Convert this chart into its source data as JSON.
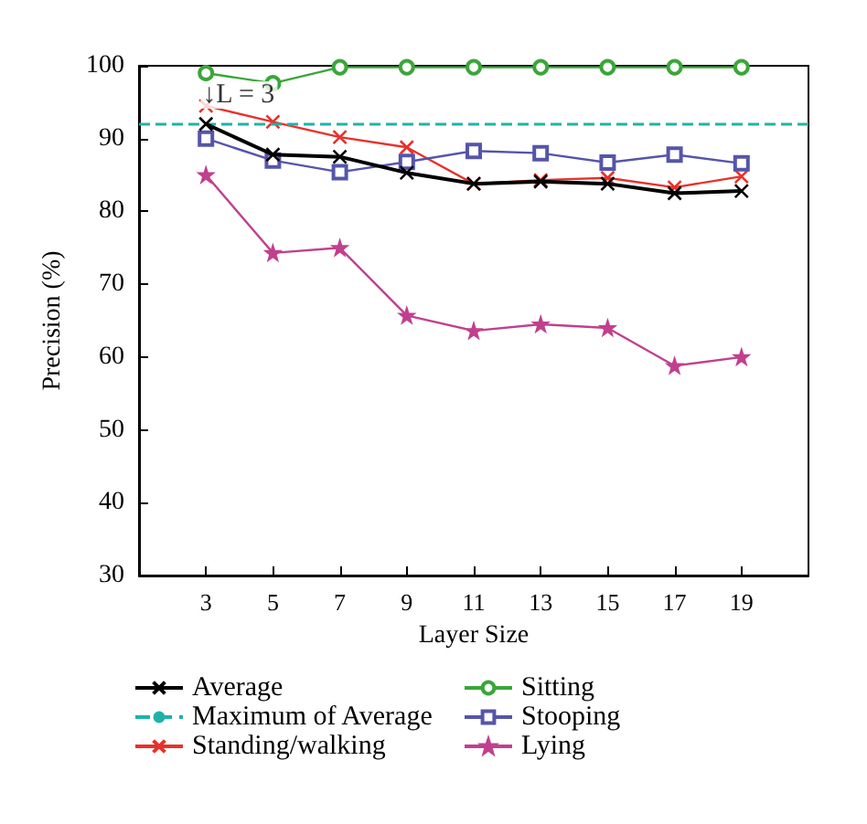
{
  "chart_data": {
    "type": "line",
    "xlabel": "Layer Size",
    "ylabel": "Precision (%)",
    "x": [
      3,
      5,
      7,
      9,
      11,
      13,
      15,
      17,
      19
    ],
    "xlim": [
      1,
      21
    ],
    "xticks": [
      3,
      5,
      7,
      9,
      11,
      13,
      15,
      17,
      19
    ],
    "ylim": [
      30,
      100
    ],
    "yticks": [
      30,
      40,
      50,
      60,
      70,
      80,
      90,
      100
    ],
    "grid": false,
    "legend": "bottom",
    "series": [
      {
        "name": "Average",
        "color": "#000000",
        "marker": "cross",
        "values": [
          92,
          87.8,
          87.5,
          85.3,
          83.8,
          84.1,
          83.8,
          82.5,
          82.8
        ]
      },
      {
        "name": "Standing/walking",
        "color": "#e8312a",
        "marker": "cross",
        "values": [
          94.5,
          92.3,
          90.2,
          88.8,
          83.8,
          84.3,
          84.6,
          83.3,
          84.8
        ]
      },
      {
        "name": "Sitting",
        "color": "#3aa639",
        "marker": "circle",
        "values": [
          99,
          97.6,
          99.8,
          99.8,
          99.8,
          99.8,
          99.8,
          99.8,
          99.8
        ]
      },
      {
        "name": "Stooping",
        "color": "#5555aa",
        "marker": "square",
        "values": [
          90,
          87,
          85.4,
          86.8,
          88.3,
          88,
          86.7,
          87.8,
          86.6
        ]
      },
      {
        "name": "Lying",
        "color": "#c0408f",
        "marker": "star",
        "values": [
          85,
          74.3,
          75,
          65.7,
          63.6,
          64.5,
          64,
          58.8,
          60
        ]
      }
    ],
    "ref_lines": [
      {
        "axis": "y",
        "value": 92,
        "label": "Maximum of Average",
        "color": "#20b2aa",
        "line_style": "dashed"
      }
    ],
    "annotations": [
      {
        "text": "↓L = 3",
        "x": 3,
        "y": 96
      }
    ]
  }
}
